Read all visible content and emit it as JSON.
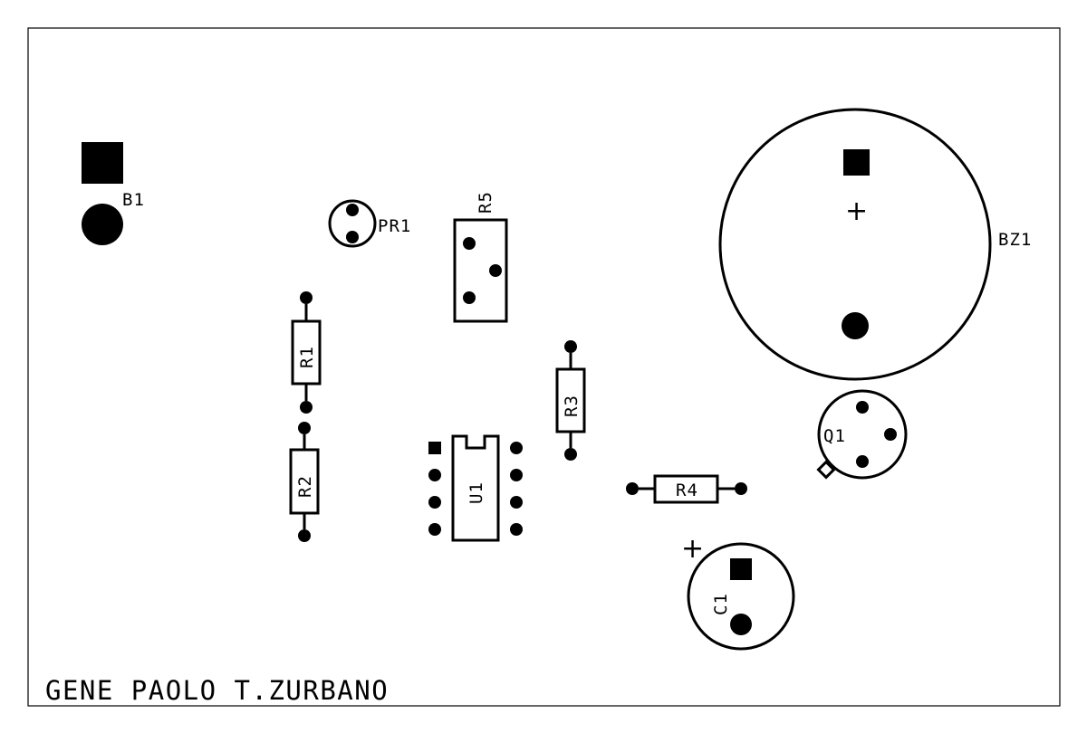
{
  "author": "GENE PAOLO T.ZURBANO",
  "labels": {
    "b1": "B1",
    "pr1": "PR1",
    "r5": "R5",
    "r1": "R1",
    "r2": "R2",
    "r3": "R3",
    "r4": "R4",
    "u1": "U1",
    "bz1": "BZ1",
    "q1": "Q1",
    "c1": "C1"
  },
  "polarity": {
    "bz1": "+",
    "c1": "+"
  },
  "colors": {
    "ink": "#000000",
    "background": "#ffffff"
  }
}
